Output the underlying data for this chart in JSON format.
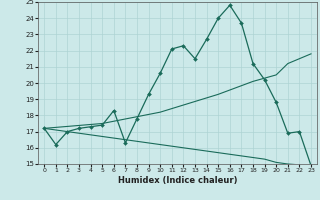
{
  "title": "",
  "xlabel": "Humidex (Indice chaleur)",
  "ylabel": "",
  "bg_color": "#cce9e9",
  "grid_color": "#aed4d4",
  "line_color": "#1a6b5a",
  "xlim": [
    -0.5,
    23.5
  ],
  "ylim": [
    15,
    25
  ],
  "xticks": [
    0,
    1,
    2,
    3,
    4,
    5,
    6,
    7,
    8,
    9,
    10,
    11,
    12,
    13,
    14,
    15,
    16,
    17,
    18,
    19,
    20,
    21,
    22,
    23
  ],
  "yticks": [
    15,
    16,
    17,
    18,
    19,
    20,
    21,
    22,
    23,
    24,
    25
  ],
  "curve1_x": [
    0,
    1,
    2,
    3,
    4,
    5,
    6,
    7,
    8,
    9,
    10,
    11,
    12,
    13,
    14,
    15,
    16,
    17,
    18,
    19,
    20,
    21,
    22,
    23
  ],
  "curve1_y": [
    17.2,
    16.2,
    17.0,
    17.2,
    17.3,
    17.4,
    18.3,
    16.3,
    17.8,
    19.3,
    20.6,
    22.1,
    22.3,
    21.5,
    22.7,
    24.0,
    24.8,
    23.7,
    21.2,
    20.2,
    18.8,
    16.9,
    17.0,
    14.9
  ],
  "curve2_x": [
    0,
    5,
    10,
    15,
    18,
    19,
    20,
    21,
    22,
    23
  ],
  "curve2_y": [
    17.2,
    17.5,
    18.2,
    19.3,
    20.1,
    20.3,
    20.5,
    21.2,
    21.5,
    21.8
  ],
  "curve3_x": [
    0,
    5,
    10,
    15,
    18,
    19,
    20,
    21,
    22,
    23
  ],
  "curve3_y": [
    17.2,
    16.7,
    16.2,
    15.7,
    15.4,
    15.3,
    15.1,
    15.0,
    14.95,
    14.9
  ]
}
